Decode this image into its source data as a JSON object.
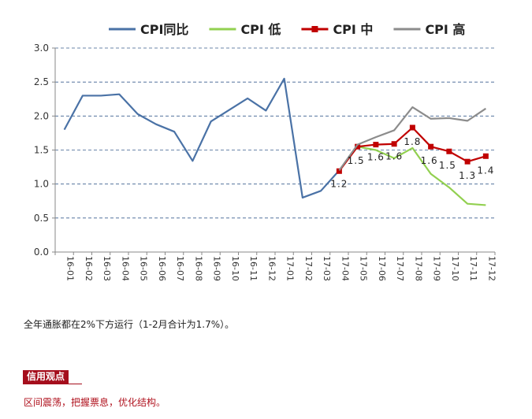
{
  "chart_data": {
    "type": "line",
    "title": "",
    "xlabel": "",
    "ylabel": "",
    "ylim": [
      0,
      3
    ],
    "yticks": [
      "0.0",
      "0.5",
      "1.0",
      "1.5",
      "2.0",
      "2.5",
      "3.0"
    ],
    "grid": "horizontal dashed",
    "legend_position": "top",
    "categories": [
      "16-01",
      "16-02",
      "16-03",
      "16-04",
      "16-05",
      "16-06",
      "16-07",
      "16-08",
      "16-09",
      "16-10",
      "16-11",
      "16-12",
      "17-01",
      "17-02",
      "17-03",
      "17-04",
      "17-05",
      "17-06",
      "17-07",
      "17-08",
      "17-09",
      "17-10",
      "17-11",
      "17-12"
    ],
    "series": [
      {
        "name": "CPI同比",
        "color": "#4a72a6",
        "marker": "none",
        "values": [
          1.8,
          2.3,
          2.3,
          2.32,
          2.03,
          1.88,
          1.77,
          1.34,
          1.92,
          2.09,
          2.26,
          2.08,
          2.55,
          0.8,
          0.9,
          1.2,
          null,
          null,
          null,
          null,
          null,
          null,
          null,
          null
        ]
      },
      {
        "name": "CPI 低",
        "color": "#92d050",
        "marker": "none",
        "values": [
          null,
          null,
          null,
          null,
          null,
          null,
          null,
          null,
          null,
          null,
          null,
          null,
          null,
          null,
          null,
          1.2,
          1.55,
          1.5,
          1.38,
          1.53,
          1.15,
          0.95,
          0.71,
          0.69
        ]
      },
      {
        "name": "CPI 中",
        "color": "#c00000",
        "marker": "square",
        "values": [
          null,
          null,
          null,
          null,
          null,
          null,
          null,
          null,
          null,
          null,
          null,
          null,
          null,
          null,
          null,
          1.19,
          1.55,
          1.58,
          1.59,
          1.83,
          1.55,
          1.48,
          1.33,
          1.41
        ]
      },
      {
        "name": "CPI 高",
        "color": "#8c8c8c",
        "marker": "none",
        "values": [
          null,
          null,
          null,
          null,
          null,
          null,
          null,
          null,
          null,
          null,
          null,
          null,
          null,
          null,
          null,
          1.2,
          1.58,
          1.69,
          1.79,
          2.13,
          1.96,
          1.97,
          1.93,
          2.11
        ]
      }
    ],
    "data_labels": [
      {
        "category": "17-04",
        "text": "1.2"
      },
      {
        "category": "17-05",
        "text": "1.5"
      },
      {
        "category": "17-06",
        "text": "1.6"
      },
      {
        "category": "17-07",
        "text": "1.6"
      },
      {
        "category": "17-08",
        "text": "1.8"
      },
      {
        "category": "17-09",
        "text": "1.6"
      },
      {
        "category": "17-10",
        "text": "1.5"
      },
      {
        "category": "17-11",
        "text": "1.3"
      },
      {
        "category": "17-12",
        "text": "1.4"
      }
    ]
  },
  "note": "全年通胀都在2%下方运行（1-2月合计为1.7%）。",
  "section": {
    "badge": "信用观点",
    "text": "区间震荡，把握票息，优化结构。",
    "color": "#a50e1c"
  }
}
